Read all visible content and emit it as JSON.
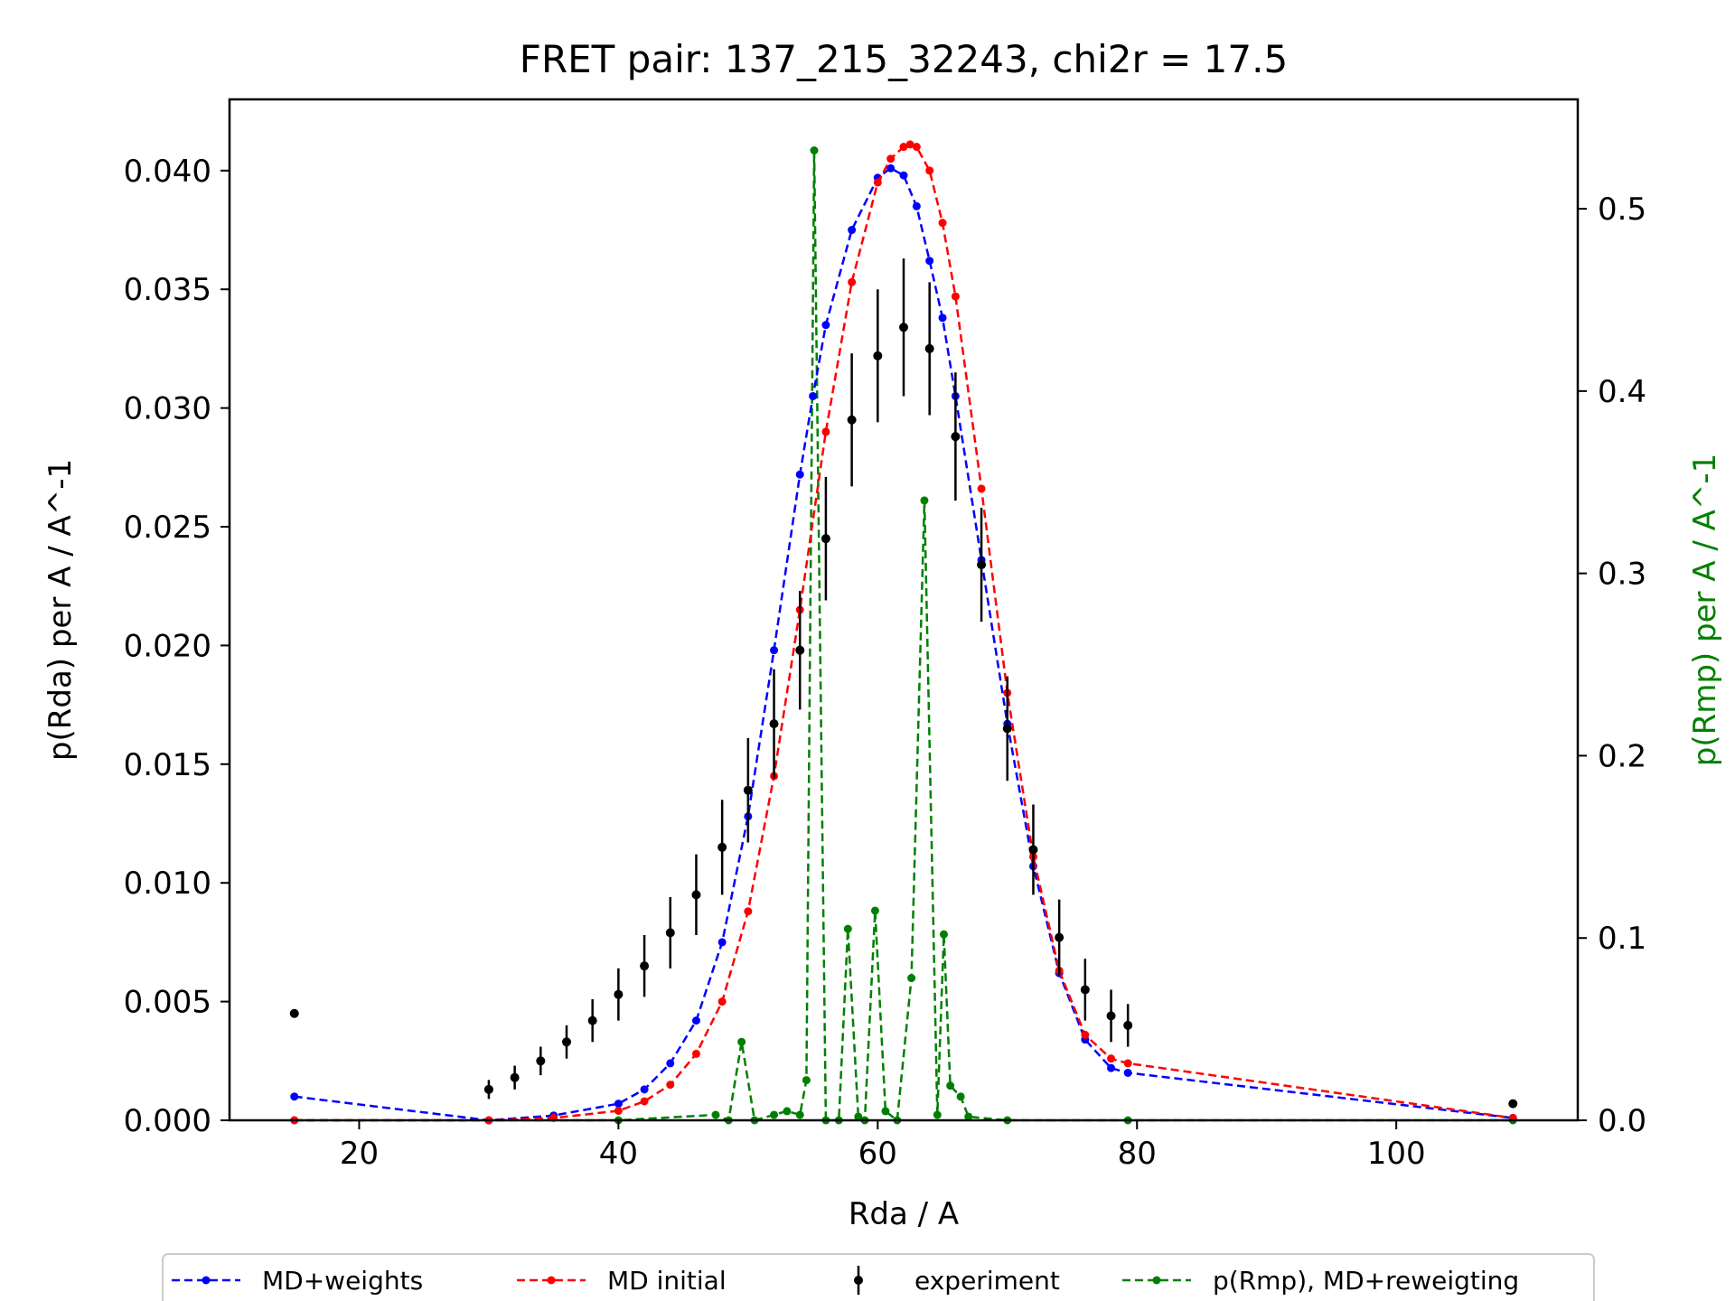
{
  "chart_data": {
    "type": "line",
    "title": "FRET pair: 137_215_32243, chi2r = 17.5",
    "xlabel": "Rda / A",
    "ylabel": "p(Rda) per A / A^-1",
    "y2label": "p(Rmp) per A / A^-1",
    "xlim": [
      10,
      114
    ],
    "ylim": [
      0,
      0.043
    ],
    "y2lim": [
      0,
      0.56
    ],
    "x_ticks": [
      "20",
      "40",
      "60",
      "80",
      "100"
    ],
    "y_ticks": [
      "0.000",
      "0.005",
      "0.010",
      "0.015",
      "0.020",
      "0.025",
      "0.030",
      "0.035",
      "0.040"
    ],
    "y2_ticks": [
      "0.0",
      "0.1",
      "0.2",
      "0.3",
      "0.4",
      "0.5"
    ],
    "legend_position": "bottom-center",
    "colors": {
      "md_weights": "#0000ff",
      "md_initial": "#ff0000",
      "experiment": "#000000",
      "rmp": "#008000"
    },
    "series": [
      {
        "name": "MD+weights",
        "axis": "left",
        "style": "dashed-dot",
        "x": [
          15,
          30,
          35,
          40,
          42,
          44,
          46,
          48,
          50,
          52,
          54,
          55,
          56,
          58,
          60,
          61,
          62,
          63,
          64,
          65,
          66,
          68,
          70,
          72,
          74,
          76,
          78,
          79.3,
          109
        ],
        "y": [
          0.001,
          0.0,
          0.0002,
          0.0007,
          0.0013,
          0.0024,
          0.0042,
          0.0075,
          0.0128,
          0.0198,
          0.0272,
          0.0305,
          0.0335,
          0.0375,
          0.0397,
          0.0401,
          0.0398,
          0.0385,
          0.0362,
          0.0338,
          0.0305,
          0.0236,
          0.0167,
          0.0107,
          0.0062,
          0.0034,
          0.0022,
          0.002,
          0.0001
        ]
      },
      {
        "name": "MD initial",
        "axis": "left",
        "style": "dashed-dot",
        "x": [
          15,
          30,
          35,
          40,
          42,
          44,
          46,
          48,
          50,
          52,
          54,
          56,
          58,
          60,
          61,
          62,
          62.5,
          63,
          64,
          65,
          66,
          68,
          70,
          72,
          74,
          76,
          78,
          79.3,
          109
        ],
        "y": [
          0.0,
          0.0,
          0.0001,
          0.0004,
          0.0008,
          0.0015,
          0.0028,
          0.005,
          0.0088,
          0.0145,
          0.0215,
          0.029,
          0.0353,
          0.0395,
          0.0405,
          0.041,
          0.0411,
          0.041,
          0.04,
          0.0378,
          0.0347,
          0.0266,
          0.018,
          0.0111,
          0.0063,
          0.0036,
          0.0026,
          0.0024,
          0.0001
        ]
      },
      {
        "name": "experiment",
        "axis": "left",
        "style": "errorbar",
        "x": [
          15,
          30,
          32,
          34,
          36,
          38,
          40,
          42,
          44,
          46,
          48,
          50,
          52,
          54,
          56,
          58,
          60,
          62,
          64,
          66,
          68,
          70,
          72,
          74,
          76,
          78,
          79.3,
          109
        ],
        "y": [
          0.0045,
          0.0013,
          0.0018,
          0.0025,
          0.0033,
          0.0042,
          0.0053,
          0.0065,
          0.0079,
          0.0095,
          0.0115,
          0.0139,
          0.0167,
          0.0198,
          0.0245,
          0.0295,
          0.0322,
          0.0334,
          0.0325,
          0.0288,
          0.0234,
          0.0165,
          0.0114,
          0.0077,
          0.0055,
          0.0044,
          0.004,
          0.0007
        ],
        "err": [
          0.0,
          0.0004,
          0.0005,
          0.0006,
          0.0007,
          0.0009,
          0.0011,
          0.0013,
          0.0015,
          0.0017,
          0.002,
          0.0022,
          0.0023,
          0.0025,
          0.0026,
          0.0028,
          0.0028,
          0.0029,
          0.0028,
          0.0027,
          0.0024,
          0.0022,
          0.0019,
          0.0016,
          0.0013,
          0.0011,
          0.0009,
          0.0
        ]
      },
      {
        "name": "p(Rmp), MD+reweigting",
        "axis": "right",
        "style": "dashed-dot",
        "x": [
          15,
          30,
          40,
          47.5,
          48.5,
          49.5,
          50.5,
          52,
          53,
          54,
          54.5,
          55.1,
          56,
          57,
          57.7,
          58.5,
          59,
          59.8,
          60.6,
          61.5,
          62.6,
          63.6,
          64.6,
          65.1,
          65.6,
          66.4,
          67,
          70,
          79.3,
          109
        ],
        "y": [
          0.0,
          0.0,
          0.0,
          0.003,
          0.0,
          0.043,
          0.0,
          0.003,
          0.005,
          0.003,
          0.022,
          0.532,
          0.0,
          0.0,
          0.105,
          0.002,
          0.0,
          0.115,
          0.005,
          0.0,
          0.078,
          0.34,
          0.003,
          0.102,
          0.019,
          0.013,
          0.002,
          0.0,
          0.0,
          0.0
        ]
      }
    ]
  }
}
